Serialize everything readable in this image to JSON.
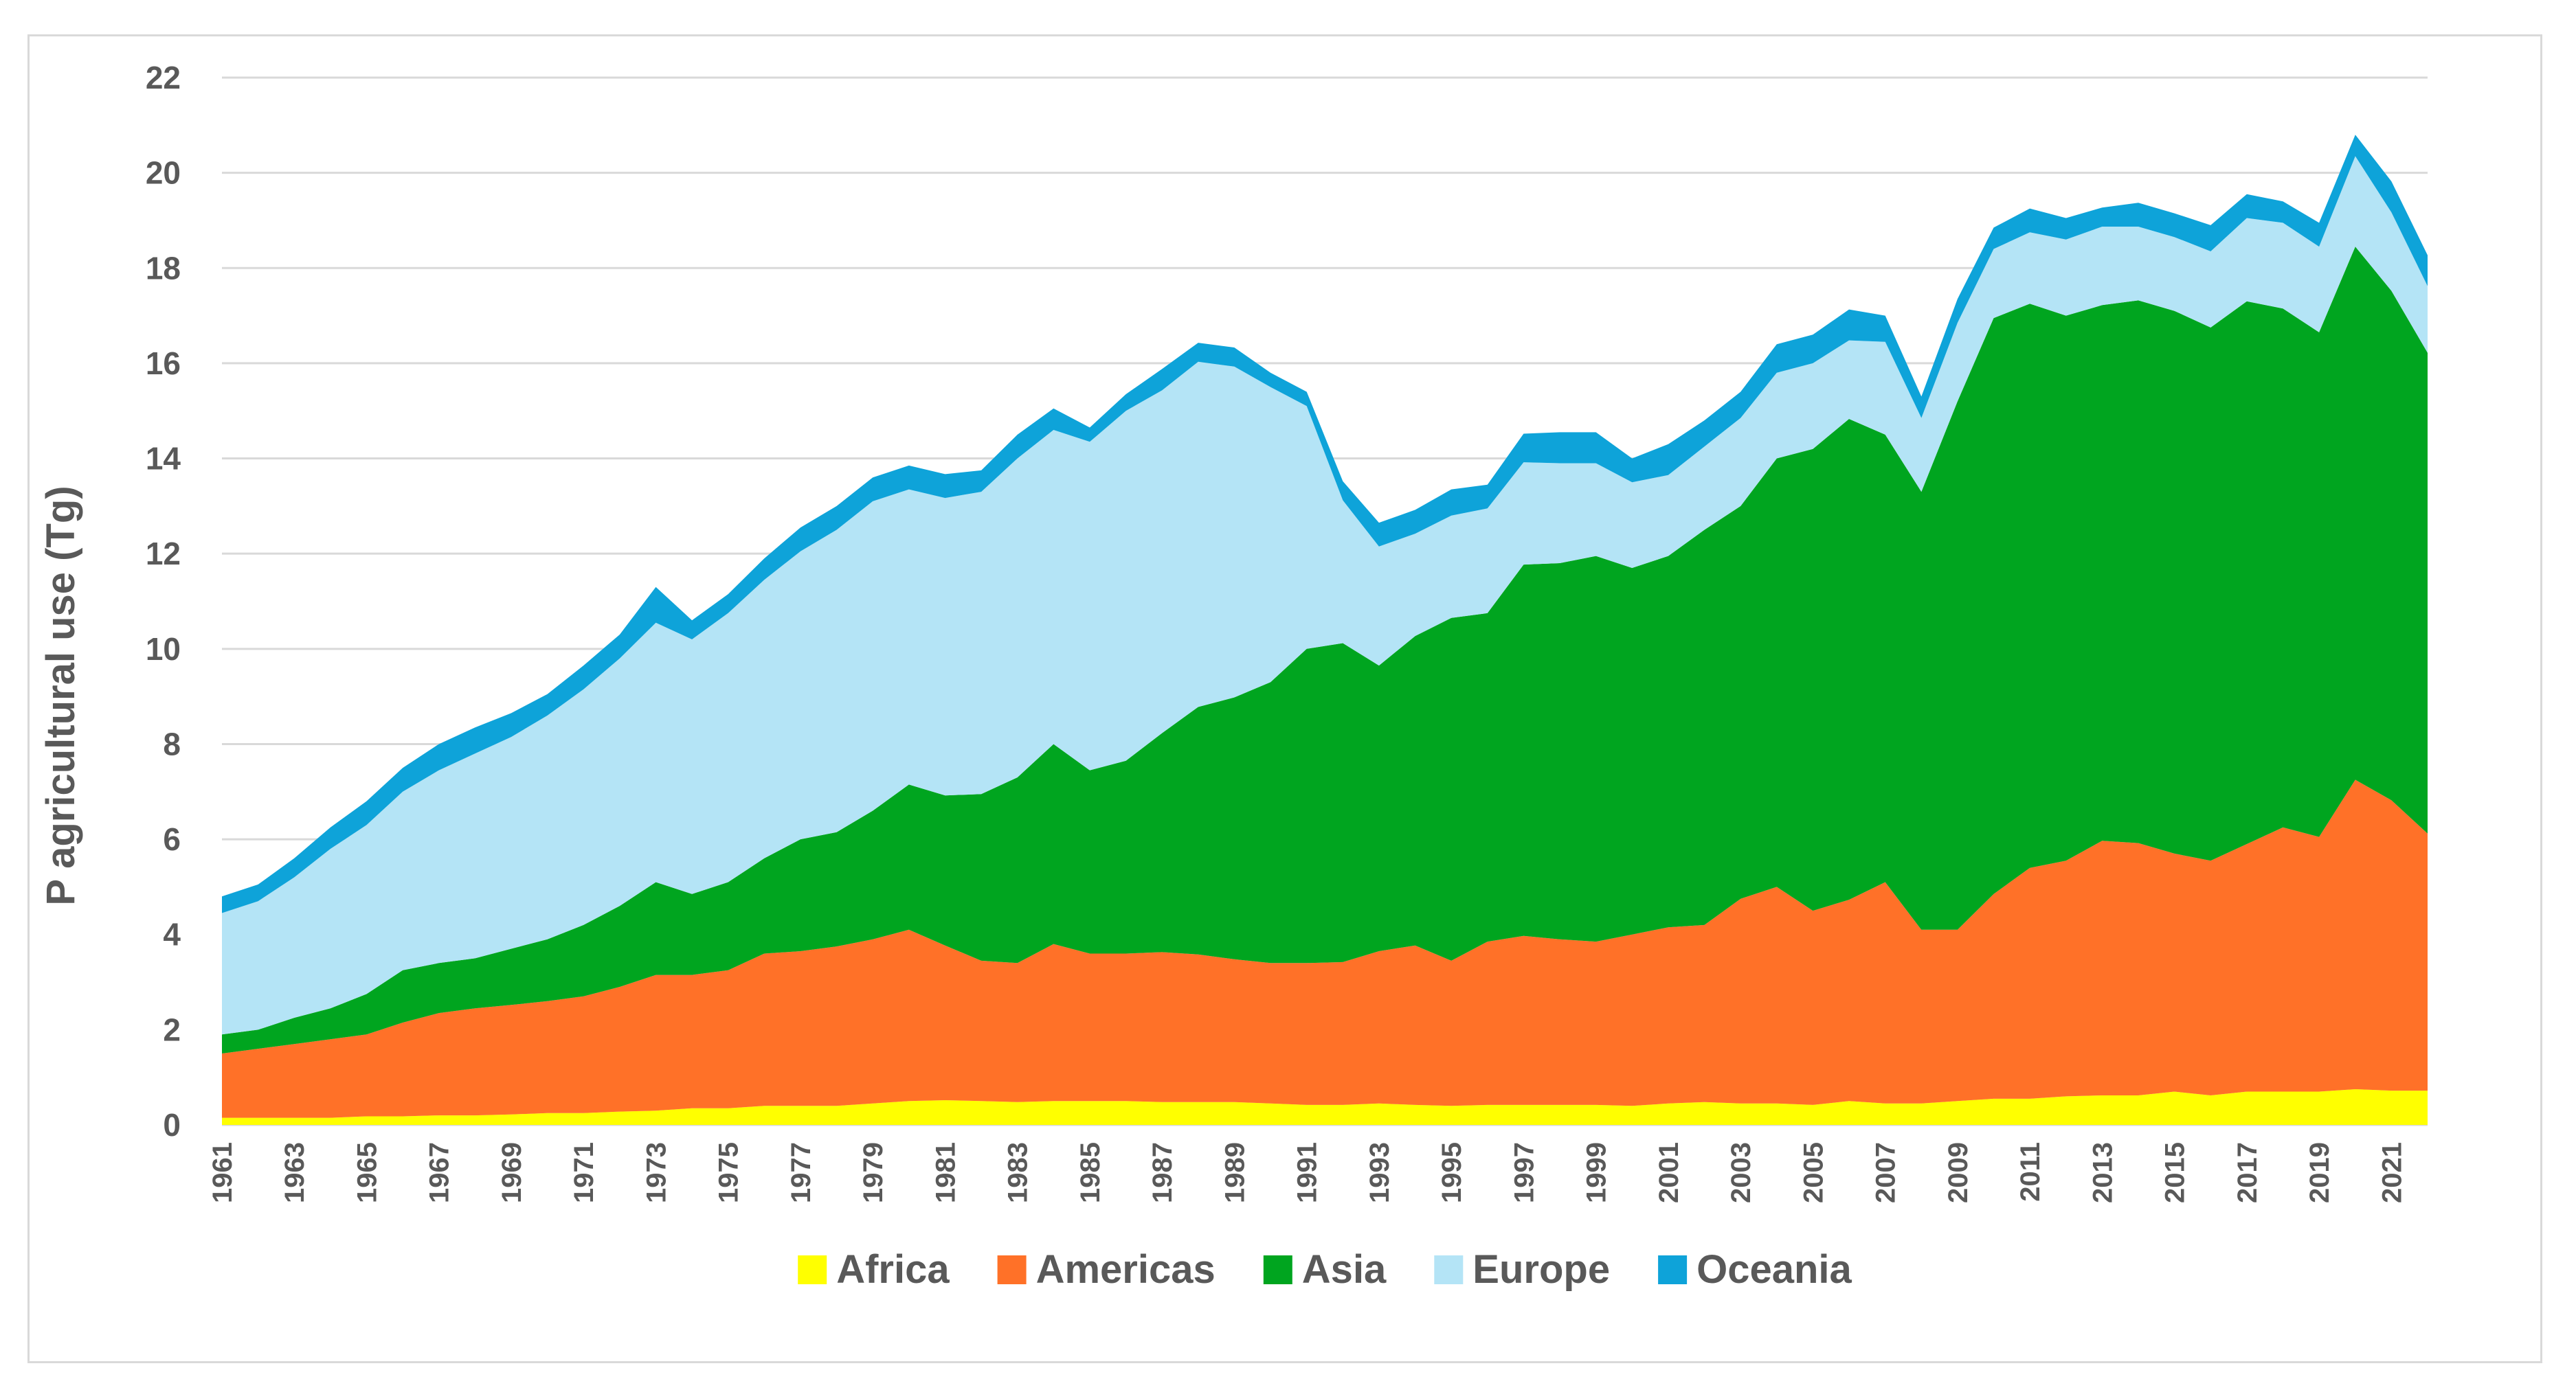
{
  "chart_data": {
    "type": "area",
    "stacked": true,
    "title": "",
    "xlabel": "",
    "ylabel": "P agricultural use (Tg)",
    "ylim": [
      0,
      22
    ],
    "yticks": [
      "0",
      "2",
      "4",
      "6",
      "8",
      "10",
      "12",
      "14",
      "16",
      "18",
      "20",
      "22"
    ],
    "grid": true,
    "legend_position": "bottom",
    "x": [
      1961,
      1962,
      1963,
      1964,
      1965,
      1966,
      1967,
      1968,
      1969,
      1970,
      1971,
      1972,
      1973,
      1974,
      1975,
      1976,
      1977,
      1978,
      1979,
      1980,
      1981,
      1982,
      1983,
      1984,
      1985,
      1986,
      1987,
      1988,
      1989,
      1990,
      1991,
      1992,
      1993,
      1994,
      1995,
      1996,
      1997,
      1998,
      1999,
      2000,
      2001,
      2002,
      2003,
      2004,
      2005,
      2006,
      2007,
      2008,
      2009,
      2010,
      2011,
      2012,
      2013,
      2014,
      2015,
      2016,
      2017,
      2018,
      2019,
      2020,
      2021,
      2022
    ],
    "xticks": [
      "1961",
      "1963",
      "1965",
      "1967",
      "1969",
      "1971",
      "1973",
      "1975",
      "1977",
      "1979",
      "1981",
      "1983",
      "1985",
      "1987",
      "1989",
      "1991",
      "1993",
      "1995",
      "1997",
      "1999",
      "2001",
      "2003",
      "2005",
      "2007",
      "2009",
      "2011",
      "2013",
      "2015",
      "2017",
      "2019",
      "2021"
    ],
    "series": [
      {
        "name": "Africa",
        "color": "#ffff00",
        "values": [
          0.15,
          0.15,
          0.15,
          0.15,
          0.18,
          0.18,
          0.2,
          0.2,
          0.22,
          0.25,
          0.25,
          0.28,
          0.3,
          0.35,
          0.35,
          0.4,
          0.4,
          0.4,
          0.45,
          0.5,
          0.52,
          0.5,
          0.48,
          0.5,
          0.5,
          0.5,
          0.48,
          0.48,
          0.48,
          0.45,
          0.42,
          0.42,
          0.45,
          0.42,
          0.4,
          0.42,
          0.42,
          0.42,
          0.42,
          0.4,
          0.45,
          0.48,
          0.45,
          0.45,
          0.42,
          0.5,
          0.45,
          0.45,
          0.5,
          0.55,
          0.55,
          0.6,
          0.62,
          0.62,
          0.7,
          0.62,
          0.7,
          0.7,
          0.7,
          0.75,
          0.72,
          0.72
        ]
      },
      {
        "name": "Americas",
        "color": "#ff7128",
        "values": [
          1.35,
          1.45,
          1.55,
          1.65,
          1.72,
          1.97,
          2.15,
          2.25,
          2.3,
          2.35,
          2.45,
          2.62,
          2.85,
          2.8,
          2.9,
          3.2,
          3.25,
          3.35,
          3.45,
          3.6,
          3.25,
          2.95,
          2.92,
          3.3,
          3.1,
          3.1,
          3.15,
          3.1,
          3.0,
          2.95,
          2.98,
          3.0,
          3.2,
          3.35,
          3.05,
          3.43,
          3.55,
          3.48,
          3.43,
          3.6,
          3.7,
          3.72,
          4.3,
          4.55,
          4.08,
          4.23,
          4.65,
          3.65,
          3.6,
          4.3,
          4.85,
          4.95,
          5.35,
          5.3,
          5.0,
          4.93,
          5.2,
          5.55,
          5.35,
          6.5,
          6.1,
          5.4
        ]
      },
      {
        "name": "Asia",
        "color": "#00a51f",
        "values": [
          0.4,
          0.4,
          0.55,
          0.65,
          0.85,
          1.1,
          1.05,
          1.05,
          1.18,
          1.3,
          1.5,
          1.7,
          1.95,
          1.7,
          1.85,
          2.0,
          2.35,
          2.4,
          2.7,
          3.05,
          3.15,
          3.5,
          3.9,
          4.2,
          3.85,
          4.05,
          4.6,
          5.2,
          5.5,
          5.9,
          6.6,
          6.7,
          6.0,
          6.5,
          7.2,
          6.9,
          7.8,
          7.9,
          8.1,
          7.7,
          7.8,
          8.3,
          8.25,
          9.0,
          9.7,
          10.1,
          9.4,
          9.2,
          11.1,
          12.1,
          11.85,
          11.45,
          11.25,
          11.4,
          11.4,
          11.2,
          11.4,
          10.9,
          10.6,
          11.2,
          10.7,
          10.1
        ]
      },
      {
        "name": "Europe",
        "color": "#b4e4f6",
        "values": [
          2.55,
          2.7,
          2.95,
          3.35,
          3.55,
          3.75,
          4.05,
          4.3,
          4.45,
          4.7,
          4.95,
          5.2,
          5.45,
          5.35,
          5.65,
          5.85,
          6.05,
          6.35,
          6.5,
          6.2,
          6.25,
          6.35,
          6.7,
          6.6,
          6.9,
          7.35,
          7.2,
          7.25,
          6.95,
          6.2,
          5.1,
          3.0,
          2.5,
          2.15,
          2.15,
          2.2,
          2.15,
          2.1,
          1.95,
          1.8,
          1.7,
          1.75,
          1.85,
          1.8,
          1.8,
          1.65,
          1.95,
          1.55,
          1.65,
          1.45,
          1.5,
          1.6,
          1.65,
          1.55,
          1.55,
          1.6,
          1.75,
          1.8,
          1.8,
          1.9,
          1.65,
          1.4
        ]
      },
      {
        "name": "Oceania",
        "color": "#0ea3d9",
        "values": [
          0.35,
          0.35,
          0.4,
          0.45,
          0.5,
          0.5,
          0.55,
          0.55,
          0.5,
          0.45,
          0.5,
          0.5,
          0.75,
          0.4,
          0.4,
          0.45,
          0.5,
          0.5,
          0.5,
          0.5,
          0.5,
          0.45,
          0.5,
          0.45,
          0.3,
          0.35,
          0.45,
          0.4,
          0.4,
          0.3,
          0.3,
          0.4,
          0.5,
          0.5,
          0.55,
          0.5,
          0.6,
          0.65,
          0.65,
          0.5,
          0.65,
          0.55,
          0.55,
          0.6,
          0.6,
          0.65,
          0.55,
          0.45,
          0.5,
          0.45,
          0.5,
          0.45,
          0.4,
          0.5,
          0.5,
          0.55,
          0.5,
          0.45,
          0.5,
          0.45,
          0.65,
          0.65
        ]
      }
    ]
  }
}
